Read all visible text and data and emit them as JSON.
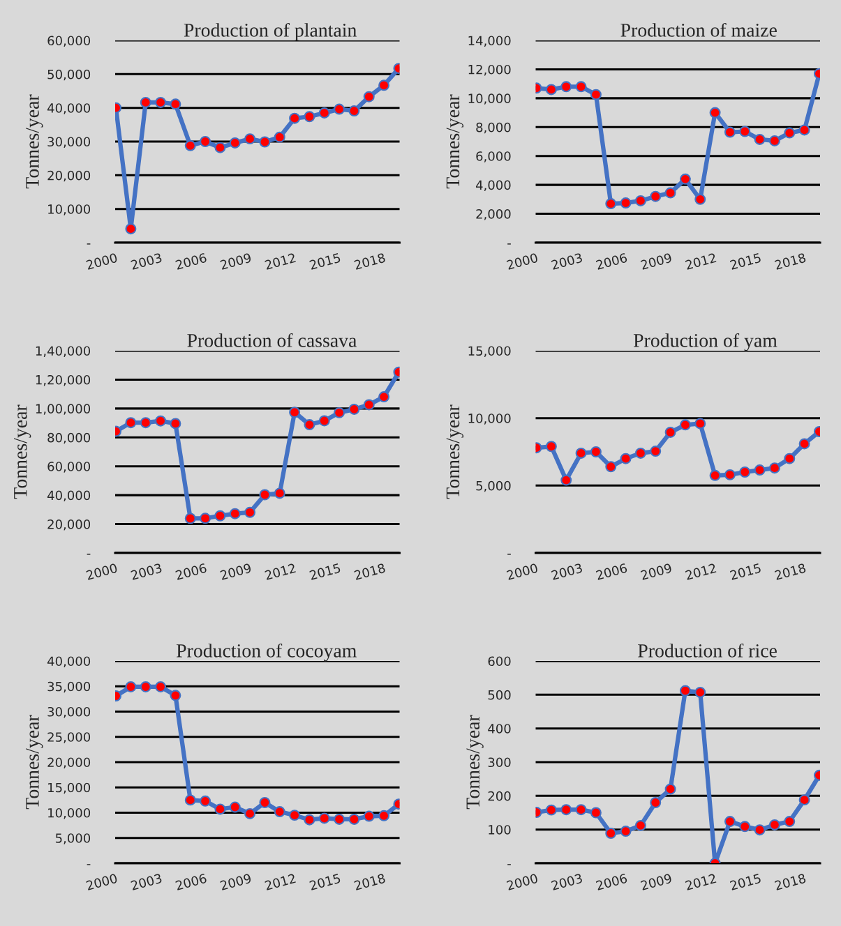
{
  "chart_data": [
    {
      "type": "line",
      "title": "Production of plantain",
      "ylabel": "Tonnes/year",
      "categories": [
        "2000",
        null,
        null,
        "2003",
        null,
        null,
        "2006",
        null,
        null,
        "2009",
        null,
        null,
        "2012",
        null,
        null,
        "2015",
        null,
        null,
        "2018",
        null
      ],
      "series": [
        {
          "color": "#4472c4",
          "values": [
            40000,
            4100,
            41600,
            41600,
            41100,
            28800,
            30000,
            28200,
            29600,
            30800,
            29900,
            31300,
            36900,
            37400,
            38500,
            39600,
            39100,
            43300,
            46700,
            51700
          ]
        }
      ],
      "ylim": [
        0,
        60000
      ],
      "yticks": [
        {
          "value": 0,
          "label": "-"
        },
        {
          "value": 10000,
          "label": "10,000"
        },
        {
          "value": 20000,
          "label": "20,000"
        },
        {
          "value": 30000,
          "label": "30,000"
        },
        {
          "value": 40000,
          "label": "40,000"
        },
        {
          "value": 50000,
          "label": "50,000"
        },
        {
          "value": 60000,
          "label": "60,000"
        }
      ],
      "grid": "y",
      "marker": "circle"
    },
    {
      "type": "line",
      "title": "Production of maize",
      "ylabel": "Tonnes/year",
      "categories": [
        "2000",
        null,
        null,
        "2003",
        null,
        null,
        "2006",
        null,
        null,
        "2009",
        null,
        null,
        "2012",
        null,
        null,
        "2015",
        null,
        null,
        "2018",
        null
      ],
      "series": [
        {
          "color": "#4472c4",
          "values": [
            10700,
            10600,
            10800,
            10800,
            10250,
            2700,
            2750,
            2900,
            3200,
            3450,
            4400,
            3000,
            9000,
            7650,
            7700,
            7150,
            7050,
            7600,
            7800,
            11700
          ]
        }
      ],
      "ylim": [
        0,
        14000
      ],
      "yticks": [
        {
          "value": 0,
          "label": "-"
        },
        {
          "value": 2000,
          "label": "2,000"
        },
        {
          "value": 4000,
          "label": "4,000"
        },
        {
          "value": 6000,
          "label": "6,000"
        },
        {
          "value": 8000,
          "label": "8,000"
        },
        {
          "value": 10000,
          "label": "10,000"
        },
        {
          "value": 12000,
          "label": "12,000"
        },
        {
          "value": 14000,
          "label": "14,000"
        }
      ],
      "grid": "y",
      "marker": "circle"
    },
    {
      "type": "line",
      "title": "Production of cassava",
      "ylabel": "Tonnes/year",
      "categories": [
        "2000",
        null,
        null,
        "2003",
        null,
        null,
        "2006",
        null,
        null,
        "2009",
        null,
        null,
        "2012",
        null,
        null,
        "2015",
        null,
        null,
        "2018",
        null
      ],
      "series": [
        {
          "color": "#4472c4",
          "values": [
            84200,
            90200,
            90200,
            91400,
            89600,
            23900,
            24000,
            25700,
            27200,
            28100,
            40300,
            41300,
            97400,
            88800,
            91500,
            97100,
            99500,
            102600,
            108100,
            125200
          ]
        }
      ],
      "ylim": [
        0,
        140000
      ],
      "yticks": [
        {
          "value": 0,
          "label": "-"
        },
        {
          "value": 20000,
          "label": "20,000"
        },
        {
          "value": 40000,
          "label": "40,000"
        },
        {
          "value": 60000,
          "label": "60,000"
        },
        {
          "value": 80000,
          "label": "80,000"
        },
        {
          "value": 100000,
          "label": "1,00,000"
        },
        {
          "value": 120000,
          "label": "1,20,000"
        },
        {
          "value": 140000,
          "label": "1,40,000"
        }
      ],
      "grid": "y",
      "marker": "circle"
    },
    {
      "type": "line",
      "title": "Production of yam",
      "ylabel": "Tonnes/year",
      "categories": [
        "2000",
        null,
        null,
        "2003",
        null,
        null,
        "2006",
        null,
        null,
        "2009",
        null,
        null,
        "2012",
        null,
        null,
        "2015",
        null,
        null,
        "2018",
        null
      ],
      "series": [
        {
          "color": "#4472c4",
          "values": [
            7800,
            7900,
            5400,
            7400,
            7500,
            6400,
            7000,
            7400,
            7550,
            8950,
            9500,
            9600,
            5750,
            5800,
            6000,
            6150,
            6300,
            7000,
            8100,
            9000
          ]
        }
      ],
      "ylim": [
        0,
        15000
      ],
      "yticks": [
        {
          "value": 0,
          "label": "-"
        },
        {
          "value": 5000,
          "label": "5,000"
        },
        {
          "value": 10000,
          "label": "10,000"
        },
        {
          "value": 15000,
          "label": "15,000"
        }
      ],
      "grid": "y",
      "marker": "circle"
    },
    {
      "type": "line",
      "title": "Production of cocoyam",
      "ylabel": "Tonnes/year",
      "categories": [
        "2000",
        null,
        null,
        "2003",
        null,
        null,
        "2006",
        null,
        null,
        "2009",
        null,
        null,
        "2012",
        null,
        null,
        "2015",
        null,
        null,
        "2018",
        null
      ],
      "series": [
        {
          "color": "#4472c4",
          "values": [
            33100,
            34900,
            34900,
            34900,
            33200,
            12500,
            12300,
            10700,
            11100,
            9800,
            12000,
            10200,
            9500,
            8600,
            8900,
            8700,
            8700,
            9300,
            9400,
            11700
          ]
        }
      ],
      "ylim": [
        0,
        40000
      ],
      "yticks": [
        {
          "value": 0,
          "label": "-"
        },
        {
          "value": 5000,
          "label": "5,000"
        },
        {
          "value": 10000,
          "label": "10,000"
        },
        {
          "value": 15000,
          "label": "15,000"
        },
        {
          "value": 20000,
          "label": "20,000"
        },
        {
          "value": 25000,
          "label": "25,000"
        },
        {
          "value": 30000,
          "label": "30,000"
        },
        {
          "value": 35000,
          "label": "35,000"
        },
        {
          "value": 40000,
          "label": "40,000"
        }
      ],
      "grid": "y",
      "marker": "circle"
    },
    {
      "type": "line",
      "title": "Production of rice",
      "ylabel": "Tonnes/year",
      "categories": [
        "2000",
        null,
        null,
        "2003",
        null,
        null,
        "2006",
        null,
        null,
        "2009",
        null,
        null,
        "2012",
        null,
        null,
        "2015",
        null,
        null,
        "2018",
        null
      ],
      "series": [
        {
          "color": "#4472c4",
          "values": [
            151,
            158,
            159,
            159,
            150,
            89,
            95,
            112,
            180,
            220,
            512,
            507,
            0,
            124,
            109,
            99,
            114,
            124,
            188,
            261
          ]
        }
      ],
      "ylim": [
        0,
        600
      ],
      "yticks": [
        {
          "value": 0,
          "label": "-"
        },
        100,
        200,
        300,
        400,
        500,
        600
      ],
      "grid": "y",
      "marker": "circle"
    }
  ]
}
